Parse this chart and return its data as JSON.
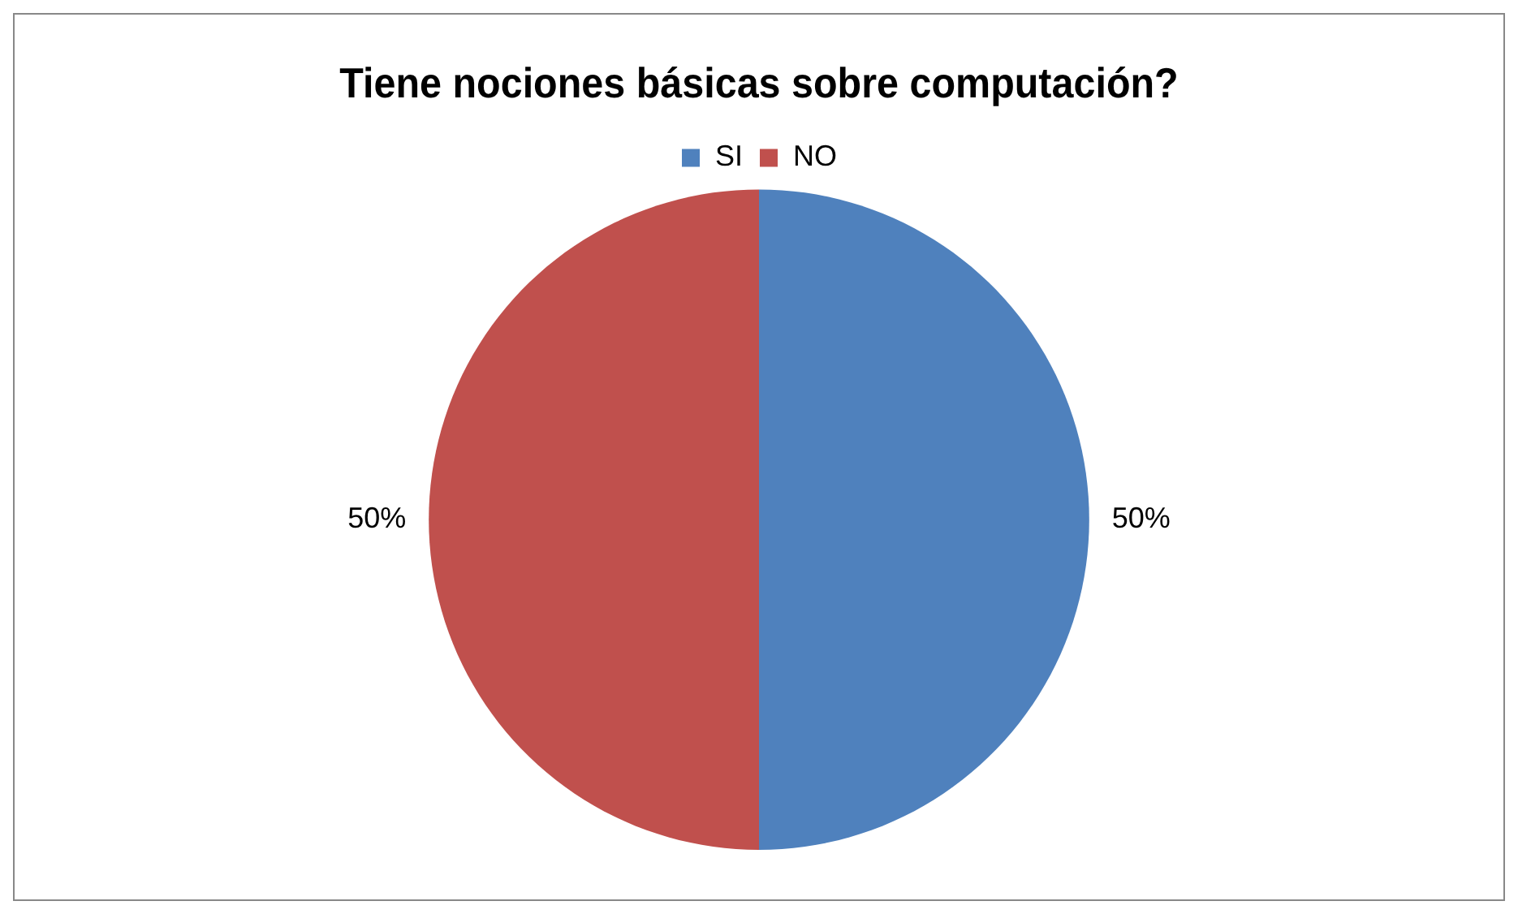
{
  "chart_data": {
    "type": "pie",
    "title": "Tiene nociones básicas sobre computación?",
    "categories": [
      "SI",
      "NO"
    ],
    "values": [
      50,
      50
    ],
    "colors": [
      "#4f81bd",
      "#c0504d"
    ],
    "value_labels": [
      "50%",
      "50%"
    ],
    "legend": "top"
  }
}
